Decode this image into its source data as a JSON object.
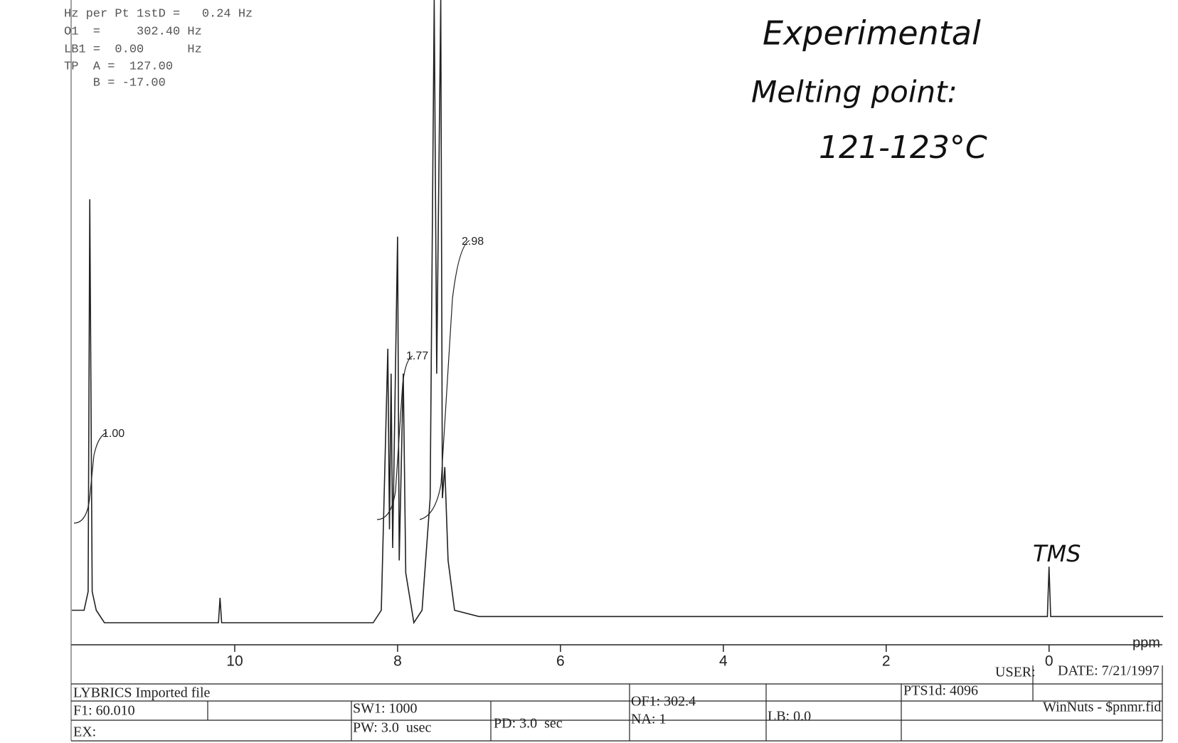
{
  "chart_data": {
    "type": "line",
    "x": [
      12.0,
      11.85,
      11.8,
      11.78,
      11.75,
      11.7,
      11.6,
      10.2,
      10.18,
      10.16,
      8.3,
      8.2,
      8.12,
      8.1,
      8.08,
      8.06,
      8.0,
      7.98,
      7.93,
      7.9,
      7.8,
      7.7,
      7.6,
      7.55,
      7.52,
      7.47,
      7.45,
      7.42,
      7.38,
      7.3,
      7.0,
      2.0,
      0.02,
      0.0,
      -0.02,
      -1.4
    ],
    "series": [
      {
        "color": "#222222",
        "values": [
          2,
          2,
          5,
          68,
          5,
          2,
          0,
          0,
          4,
          0,
          0,
          2,
          44,
          15,
          40,
          12,
          62,
          10,
          40,
          8,
          0,
          2,
          20,
          100,
          40,
          100,
          20,
          25,
          10,
          2,
          1,
          1,
          1,
          9,
          1,
          1
        ]
      }
    ],
    "xlim": [
      12.0,
      -1.4
    ],
    "ylim": [
      0,
      100
    ],
    "xticks": [
      10,
      8,
      6,
      4,
      2,
      0
    ],
    "x_label": "ppm",
    "annotations": [
      "1.00",
      "1.77",
      "2.98"
    ]
  },
  "parameters": [
    "Hz per Pt 1stD =   0.24 Hz",
    "O1  =     302.40 Hz",
    "LB1 =  0.00      Hz",
    "TP  A =  127.00",
    "    B = -17.00"
  ],
  "handwritten_notes": [
    "Experimental",
    "Melting point:",
    "121-123°C",
    "TMS"
  ],
  "footer": {
    "user": "USER:",
    "date": "DATE: 7/21/1997",
    "file": "LYBRICS Imported file",
    "pts": "PTS1d: 4096",
    "f1": "F1: 60.010",
    "sw1": "SW1: 1000",
    "of1": "OF1: 302.4",
    "software": "WinNuts - $pnmr.fid",
    "ex": "EX:",
    "pw": "PW: 3.0  usec",
    "pd": "PD: 3.0  sec",
    "na": "NA: 1",
    "lb": "LB: 0.0"
  }
}
